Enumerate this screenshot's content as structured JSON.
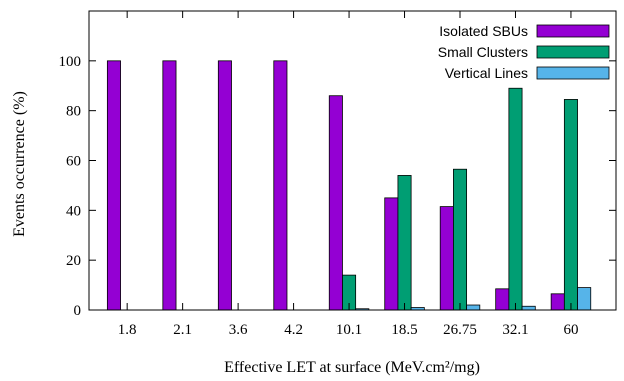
{
  "chart_data": {
    "type": "bar",
    "xlabel": "Effective LET at surface (MeV.cm²/mg)",
    "ylabel": "Events occurrence (%)",
    "ylim": [
      0,
      120
    ],
    "yticks": [
      0,
      20,
      40,
      60,
      80,
      100
    ],
    "grid": false,
    "legend_position": "top-right",
    "categories": [
      "1.8",
      "2.1",
      "3.6",
      "4.2",
      "10.1",
      "18.5",
      "26.75",
      "32.1",
      "60"
    ],
    "series": [
      {
        "name": "Isolated SBUs",
        "color": "#9400d3",
        "values": [
          100,
          100,
          100,
          100,
          86,
          45,
          41.5,
          8.5,
          6.5
        ]
      },
      {
        "name": "Small Clusters",
        "color": "#009e73",
        "values": [
          0,
          0,
          0,
          0,
          14,
          54,
          56.5,
          89,
          84.5
        ]
      },
      {
        "name": "Vertical Lines",
        "color": "#56b4e9",
        "values": [
          0,
          0,
          0,
          0,
          0.5,
          1,
          2,
          1.5,
          9
        ]
      }
    ]
  }
}
